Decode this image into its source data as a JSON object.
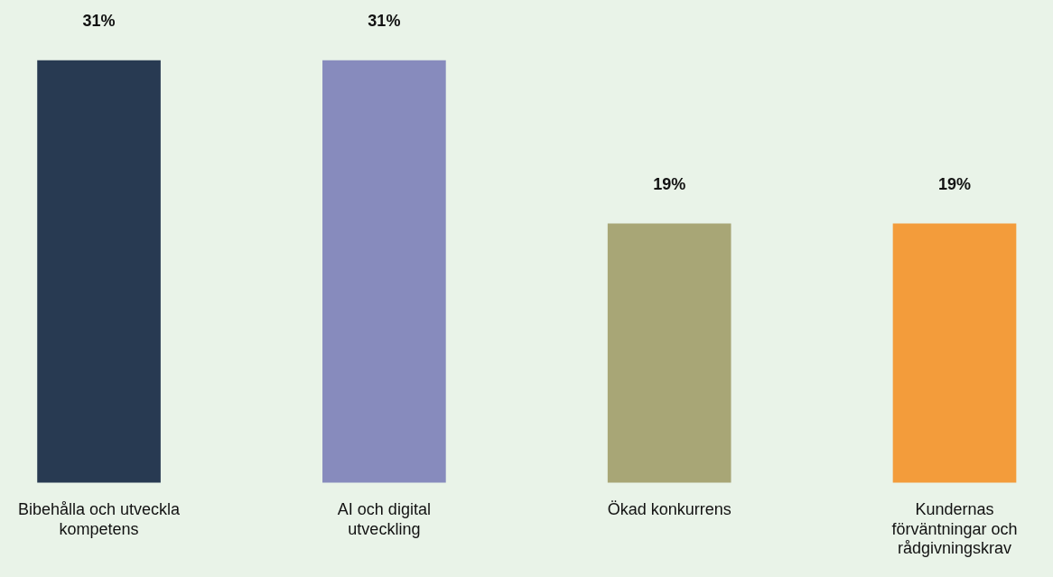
{
  "chart_data": {
    "type": "bar",
    "categories": [
      "Bibehålla och utveckla kompetens",
      "AI och digital utveckling",
      "Ökad konkurrens",
      "Kundernas förväntningar och rådgivningskrav"
    ],
    "values": [
      31,
      31,
      19,
      19
    ],
    "colors": [
      "#283a52",
      "#878bbd",
      "#a8a676",
      "#f39c3b"
    ],
    "value_labels": [
      "31%",
      "31%",
      "19%",
      "19%"
    ],
    "grid": false,
    "legend": false
  }
}
